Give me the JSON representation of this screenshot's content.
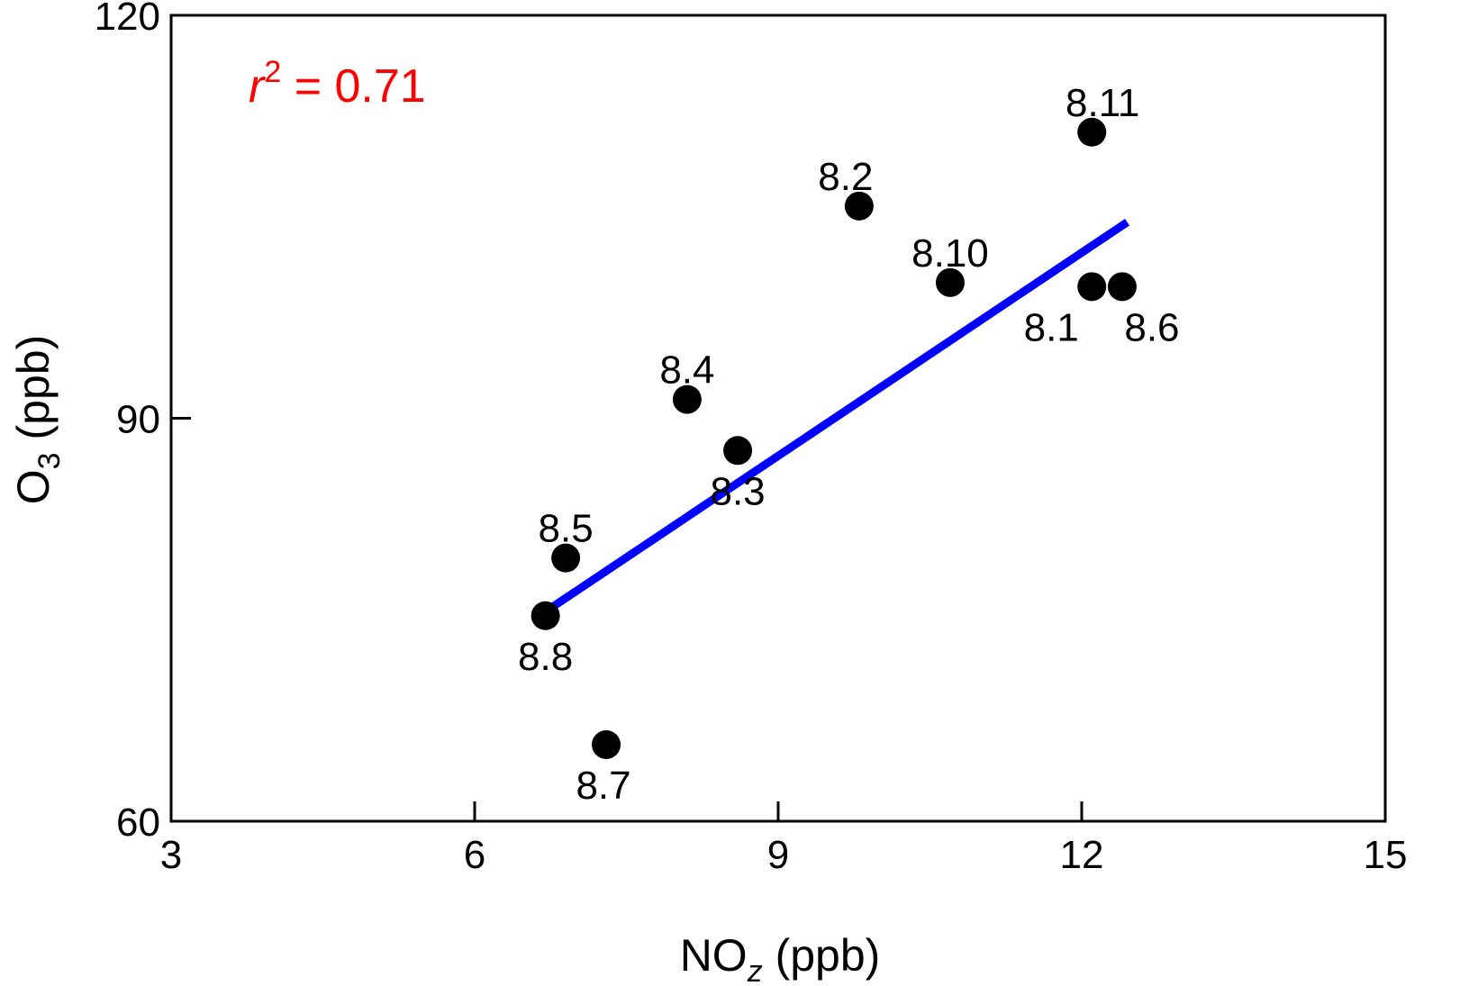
{
  "chart_data": {
    "type": "scatter",
    "xlabel": {
      "main": "NO",
      "sub": "z",
      "unit": " (ppb)"
    },
    "ylabel": {
      "main": "O",
      "sub": "3",
      "unit": " (ppb)"
    },
    "xlim": [
      3,
      15
    ],
    "ylim": [
      60,
      120
    ],
    "xticks": [
      3,
      6,
      9,
      12,
      15
    ],
    "yticks": [
      60,
      90,
      120
    ],
    "grid": false,
    "points": [
      {
        "label": "8.1",
        "x": 12.1,
        "y": 99.8
      },
      {
        "label": "8.2",
        "x": 9.8,
        "y": 105.8
      },
      {
        "label": "8.3",
        "x": 8.6,
        "y": 87.6
      },
      {
        "label": "8.4",
        "x": 8.1,
        "y": 91.4
      },
      {
        "label": "8.5",
        "x": 6.9,
        "y": 79.6
      },
      {
        "label": "8.6",
        "x": 12.4,
        "y": 99.8
      },
      {
        "label": "8.7",
        "x": 7.3,
        "y": 65.7
      },
      {
        "label": "8.8",
        "x": 6.7,
        "y": 75.3
      },
      {
        "label": "8.10",
        "x": 10.7,
        "y": 100.1
      },
      {
        "label": "8.11",
        "x": 12.1,
        "y": 111.3
      }
    ],
    "fit_line": {
      "x": [
        6.7,
        12.45
      ],
      "y": [
        75.6,
        104.6
      ]
    },
    "annotation": {
      "var": "r",
      "sup": "2",
      "text": " = 0.71",
      "color": "#ff0000"
    },
    "fit_color": "#0000ff",
    "point_color": "#000000"
  }
}
